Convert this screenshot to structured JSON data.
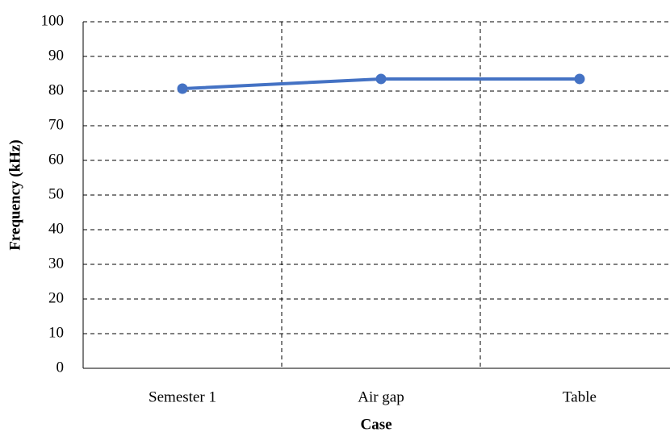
{
  "chart_data": {
    "type": "line",
    "categories": [
      "Semester 1",
      "Air gap",
      "Table"
    ],
    "series": [
      {
        "name": "Frequency",
        "color": "#4472c4",
        "values": [
          80.7,
          83.5,
          83.5
        ]
      }
    ],
    "xlabel": "Case",
    "ylabel": "Frequency (kHz)",
    "ylim": [
      0,
      100
    ],
    "yticks": [
      0,
      10,
      20,
      30,
      40,
      50,
      60,
      70,
      80,
      90,
      100
    ],
    "grid": true
  }
}
